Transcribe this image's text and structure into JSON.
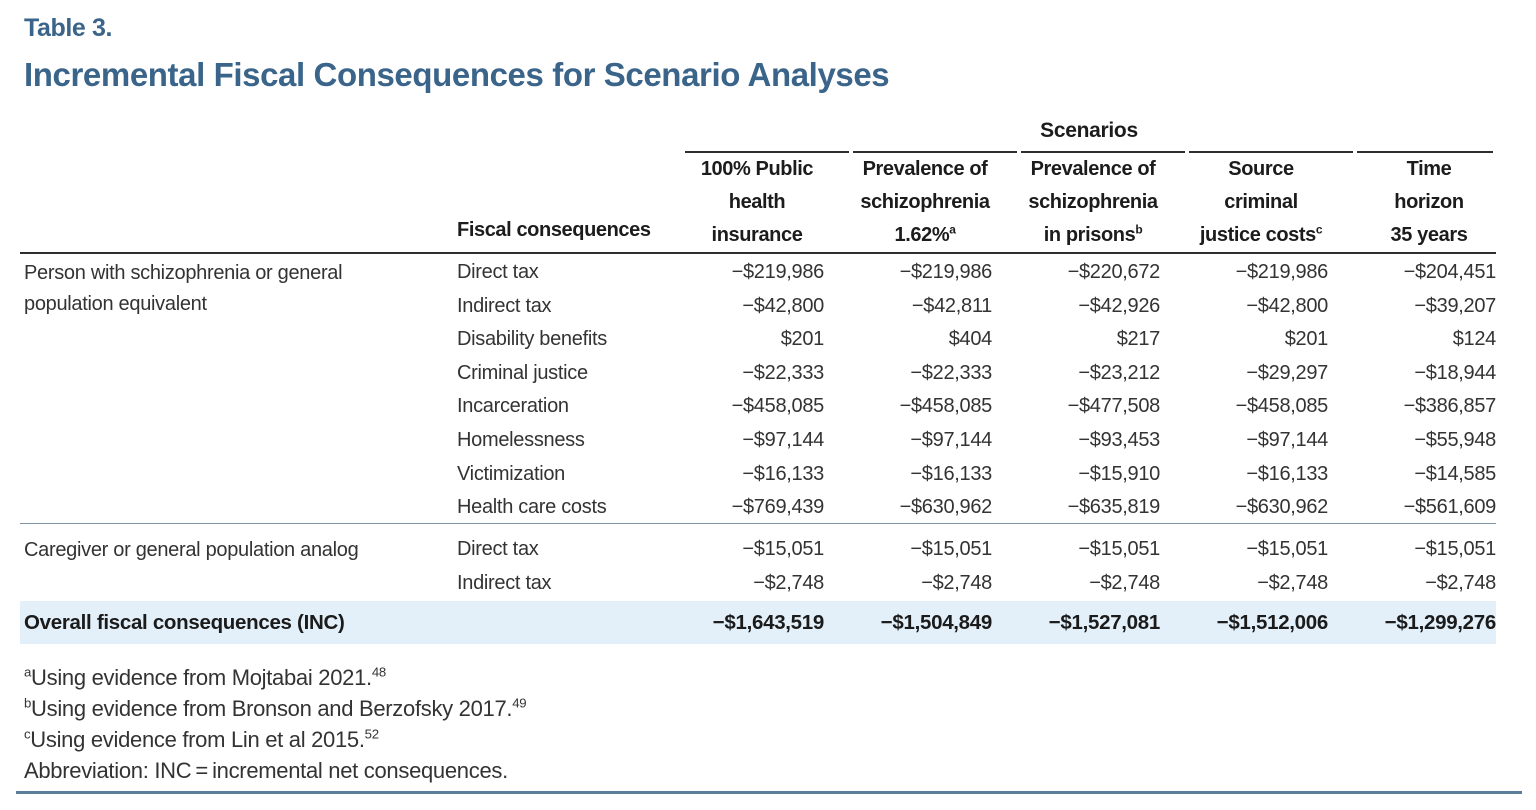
{
  "title": {
    "eyebrow": "Table 3.",
    "heading": "Incremental Fiscal Consequences for Scenario Analyses"
  },
  "colors": {
    "accent_blue": "#3a6489",
    "highlight_row_bg": "#e3f0fa",
    "bottom_rule": "#5e7d9a"
  },
  "table": {
    "scenarios_label": "Scenarios",
    "row_header_label": "Fiscal consequences",
    "columns": [
      {
        "lines": [
          "100% Public",
          "health",
          "insurance"
        ],
        "sup": ""
      },
      {
        "lines": [
          "Prevalence of",
          "schizophrenia",
          "1.62%"
        ],
        "sup": "a"
      },
      {
        "lines": [
          "Prevalence of",
          "schizophrenia",
          "in prisons"
        ],
        "sup": "b"
      },
      {
        "lines": [
          "Source",
          "criminal",
          "justice costs"
        ],
        "sup": "c"
      },
      {
        "lines": [
          "Time",
          "horizon",
          "35 years"
        ],
        "sup": ""
      }
    ],
    "groups": [
      {
        "label": "Person with schizophrenia or general population equivalent",
        "rows": [
          {
            "label": "Direct tax",
            "values": [
              "−$219,986",
              "−$219,986",
              "−$220,672",
              "−$219,986",
              "−$204,451"
            ]
          },
          {
            "label": "Indirect tax",
            "values": [
              "−$42,800",
              "−$42,811",
              "−$42,926",
              "−$42,800",
              "−$39,207"
            ]
          },
          {
            "label": "Disability benefits",
            "values": [
              "$201",
              "$404",
              "$217",
              "$201",
              "$124"
            ]
          },
          {
            "label": "Criminal justice",
            "values": [
              "−$22,333",
              "−$22,333",
              "−$23,212",
              "−$29,297",
              "−$18,944"
            ]
          },
          {
            "label": "Incarceration",
            "values": [
              "−$458,085",
              "−$458,085",
              "−$477,508",
              "−$458,085",
              "−$386,857"
            ]
          },
          {
            "label": "Homelessness",
            "values": [
              "−$97,144",
              "−$97,144",
              "−$93,453",
              "−$97,144",
              "−$55,948"
            ]
          },
          {
            "label": "Victimization",
            "values": [
              "−$16,133",
              "−$16,133",
              "−$15,910",
              "−$16,133",
              "−$14,585"
            ]
          },
          {
            "label": "Health care costs",
            "values": [
              "−$769,439",
              "−$630,962",
              "−$635,819",
              "−$630,962",
              "−$561,609"
            ]
          }
        ]
      },
      {
        "label": "Caregiver or general population analog",
        "rows": [
          {
            "label": "Direct tax",
            "values": [
              "−$15,051",
              "−$15,051",
              "−$15,051",
              "−$15,051",
              "−$15,051"
            ]
          },
          {
            "label": "Indirect tax",
            "values": [
              "−$2,748",
              "−$2,748",
              "−$2,748",
              "−$2,748",
              "−$2,748"
            ]
          }
        ]
      }
    ],
    "total_row": {
      "label": "Overall fiscal consequences (INC)",
      "values": [
        "−$1,643,519",
        "−$1,504,849",
        "−$1,527,081",
        "−$1,512,006",
        "−$1,299,276"
      ]
    }
  },
  "footnotes": [
    {
      "marker": "a",
      "text": "Using evidence from Mojtabai 2021.",
      "ref": "48"
    },
    {
      "marker": "b",
      "text": "Using evidence from Bronson and Berzofsky 2017.",
      "ref": "49"
    },
    {
      "marker": "c",
      "text": "Using evidence from Lin et al 2015.",
      "ref": "52"
    }
  ],
  "abbreviation": "Abbreviation: INC = incremental net consequences."
}
